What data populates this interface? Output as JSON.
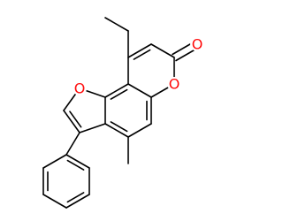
{
  "atoms": [
    {
      "label": "O"
    },
    {
      "label": "O"
    },
    {
      "label": "O"
    }
  ]
}
